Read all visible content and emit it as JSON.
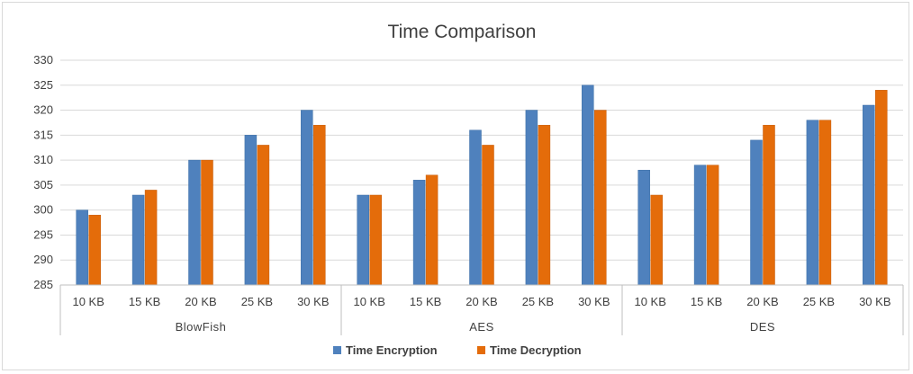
{
  "chart_data": {
    "type": "bar",
    "title": "Time Comparison",
    "xlabel": "",
    "ylabel": "",
    "ylim": [
      285,
      330
    ],
    "ytick_step": 5,
    "grid": true,
    "legend_position": "bottom",
    "groups": [
      "BlowFish",
      "AES",
      "DES"
    ],
    "categories": [
      "10 KB",
      "15 KB",
      "20 KB",
      "25 KB",
      "30 KB"
    ],
    "series": [
      {
        "name": "Time Encryption",
        "color": "#4f81bd",
        "values": [
          [
            300,
            303,
            310,
            315,
            320
          ],
          [
            303,
            306,
            316,
            320,
            325
          ],
          [
            308,
            309,
            314,
            318,
            321
          ]
        ]
      },
      {
        "name": "Time Decryption",
        "color": "#e46c0a",
        "values": [
          [
            299,
            304,
            310,
            313,
            317
          ],
          [
            303,
            307,
            313,
            317,
            320
          ],
          [
            303,
            309,
            317,
            318,
            324
          ]
        ]
      }
    ]
  }
}
